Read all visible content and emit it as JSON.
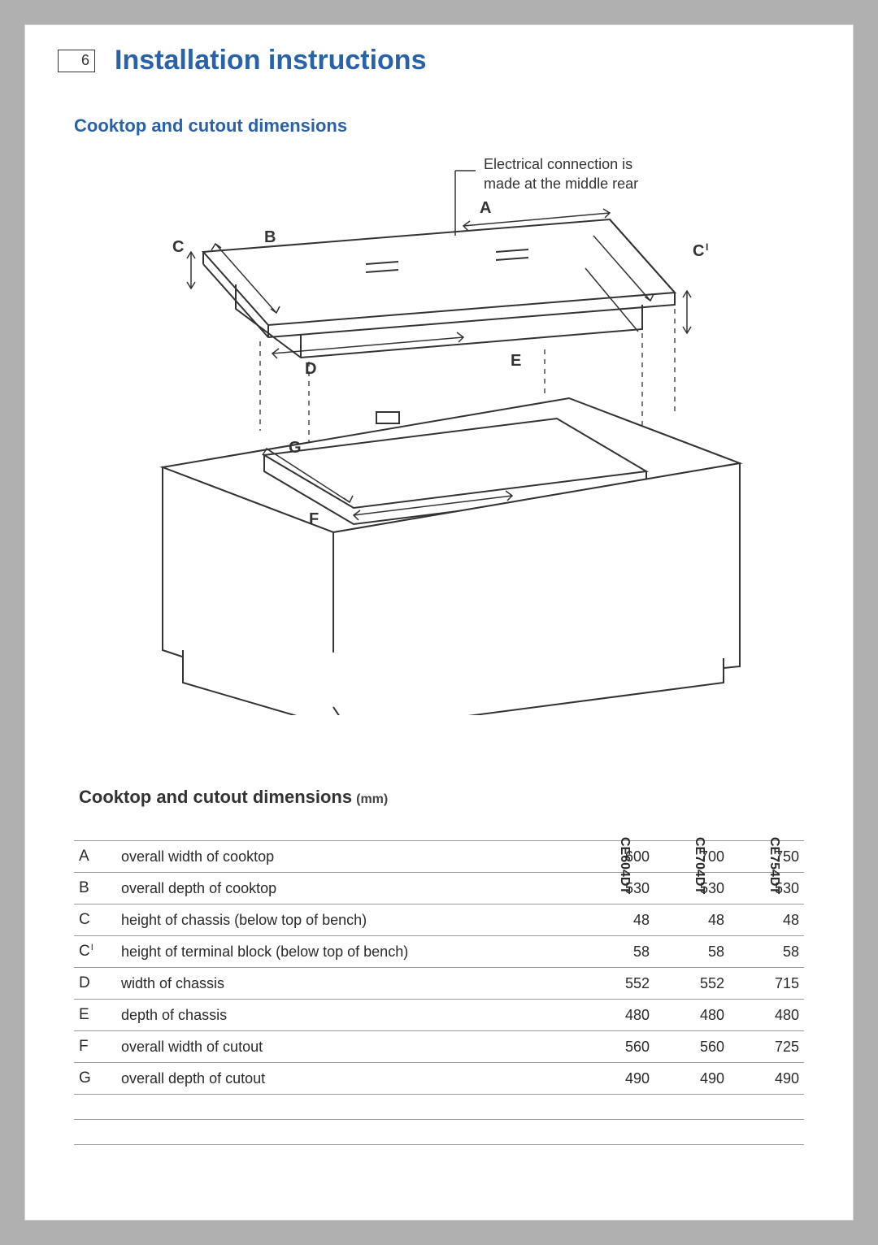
{
  "page_number": "6",
  "title": "Installation instructions",
  "section_heading": "Cooktop and cutout dimensions",
  "diagram": {
    "note_line1": "Electrical connection is",
    "note_line2": "made at the middle rear",
    "labels": {
      "A": "A",
      "B": "B",
      "C": "C",
      "C1": "C",
      "D": "D",
      "E": "E",
      "F": "F",
      "G": "G"
    },
    "stroke": "#333333",
    "accent": "#2962a9"
  },
  "table": {
    "title": "Cooktop and cutout dimensions",
    "unit": "(mm)",
    "models": [
      "CE604DT",
      "CE704DT",
      "CE754DT"
    ],
    "rows": [
      {
        "code": "A",
        "sup": "",
        "desc": "overall width of cooktop",
        "vals": [
          "600",
          "700",
          "750"
        ]
      },
      {
        "code": "B",
        "sup": "",
        "desc": "overall depth of cooktop",
        "vals": [
          "530",
          "530",
          "530"
        ]
      },
      {
        "code": "C",
        "sup": "",
        "desc": "height of chassis (below top of bench)",
        "vals": [
          "48",
          "48",
          "48"
        ]
      },
      {
        "code": "C",
        "sup": "I",
        "desc": "height of terminal block (below top of bench)",
        "vals": [
          "58",
          "58",
          "58"
        ]
      },
      {
        "code": "D",
        "sup": "",
        "desc": "width of chassis",
        "vals": [
          "552",
          "552",
          "715"
        ]
      },
      {
        "code": "E",
        "sup": "",
        "desc": "depth of chassis",
        "vals": [
          "480",
          "480",
          "480"
        ]
      },
      {
        "code": "F",
        "sup": "",
        "desc": "overall width of cutout",
        "vals": [
          "560",
          "560",
          "725"
        ]
      },
      {
        "code": "G",
        "sup": "",
        "desc": "overall depth of cutout",
        "vals": [
          "490",
          "490",
          "490"
        ]
      }
    ]
  }
}
